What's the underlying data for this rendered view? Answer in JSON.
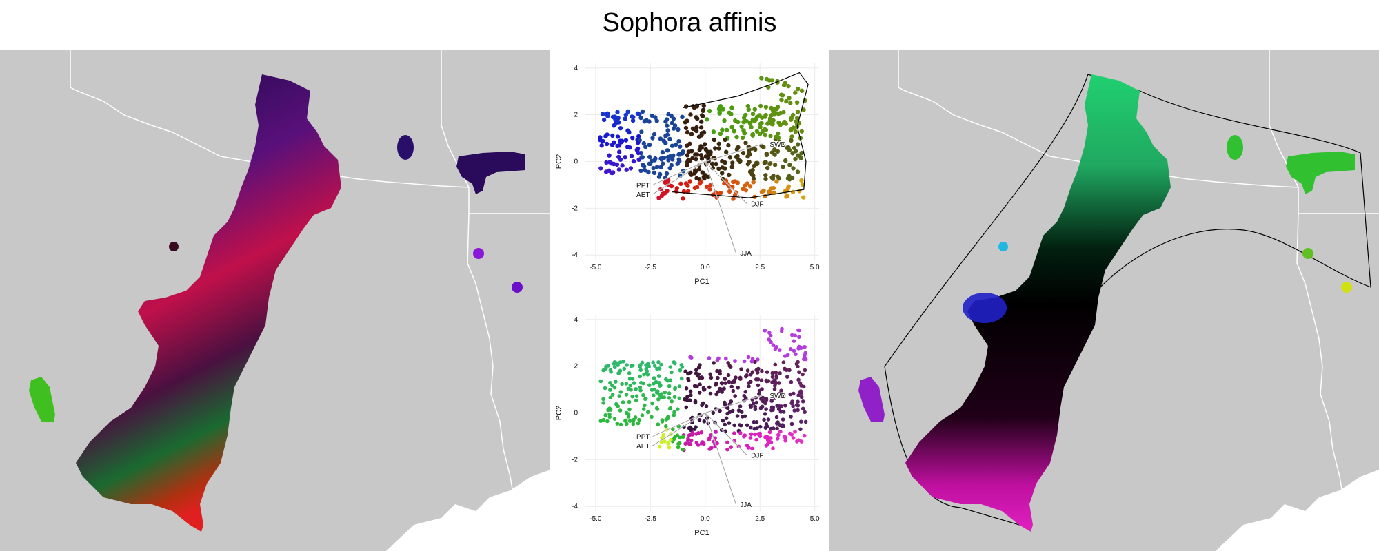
{
  "title": "Sophora affinis",
  "chart_data": [
    {
      "type": "scatter",
      "panel": "pca-top",
      "xlabel": "PC1",
      "ylabel": "PC2",
      "xlim": [
        -5.5,
        5.2
      ],
      "ylim": [
        -4.2,
        4.2
      ],
      "x_ticks": [
        "-5.0",
        "-2.5",
        "0.0",
        "2.5",
        "5.0"
      ],
      "y_ticks": [
        "4",
        "2",
        "0",
        "-2",
        "-4"
      ],
      "grid": true,
      "loadings": [
        {
          "label": "SWD",
          "x": 2.6,
          "y": 0.75
        },
        {
          "label": "PPT",
          "x": -2.4,
          "y": -1.0
        },
        {
          "label": "AET",
          "x": -2.4,
          "y": -1.4
        },
        {
          "label": "DJF",
          "x": 1.9,
          "y": -1.8
        },
        {
          "label": "JJA",
          "x": 1.4,
          "y": -3.9
        }
      ]
    },
    {
      "type": "scatter",
      "panel": "pca-bottom",
      "xlabel": "PC1",
      "ylabel": "PC2",
      "xlim": [
        -5.5,
        5.2
      ],
      "ylim": [
        -4.2,
        4.2
      ],
      "x_ticks": [
        "-5.0",
        "-2.5",
        "0.0",
        "2.5",
        "5.0"
      ],
      "y_ticks": [
        "4",
        "2",
        "0",
        "-2",
        "-4"
      ],
      "grid": true,
      "loadings": [
        {
          "label": "SWD",
          "x": 2.6,
          "y": 0.75
        },
        {
          "label": "PPT",
          "x": -2.4,
          "y": -1.0
        },
        {
          "label": "AET",
          "x": -2.4,
          "y": -1.4
        },
        {
          "label": "DJF",
          "x": 1.9,
          "y": -1.8
        },
        {
          "label": "JJA",
          "x": 1.4,
          "y": -3.9
        }
      ]
    }
  ],
  "colors": {
    "map_background": "#c8c8c8",
    "boundary": "#ffffff",
    "gulf": "#ffffff"
  }
}
